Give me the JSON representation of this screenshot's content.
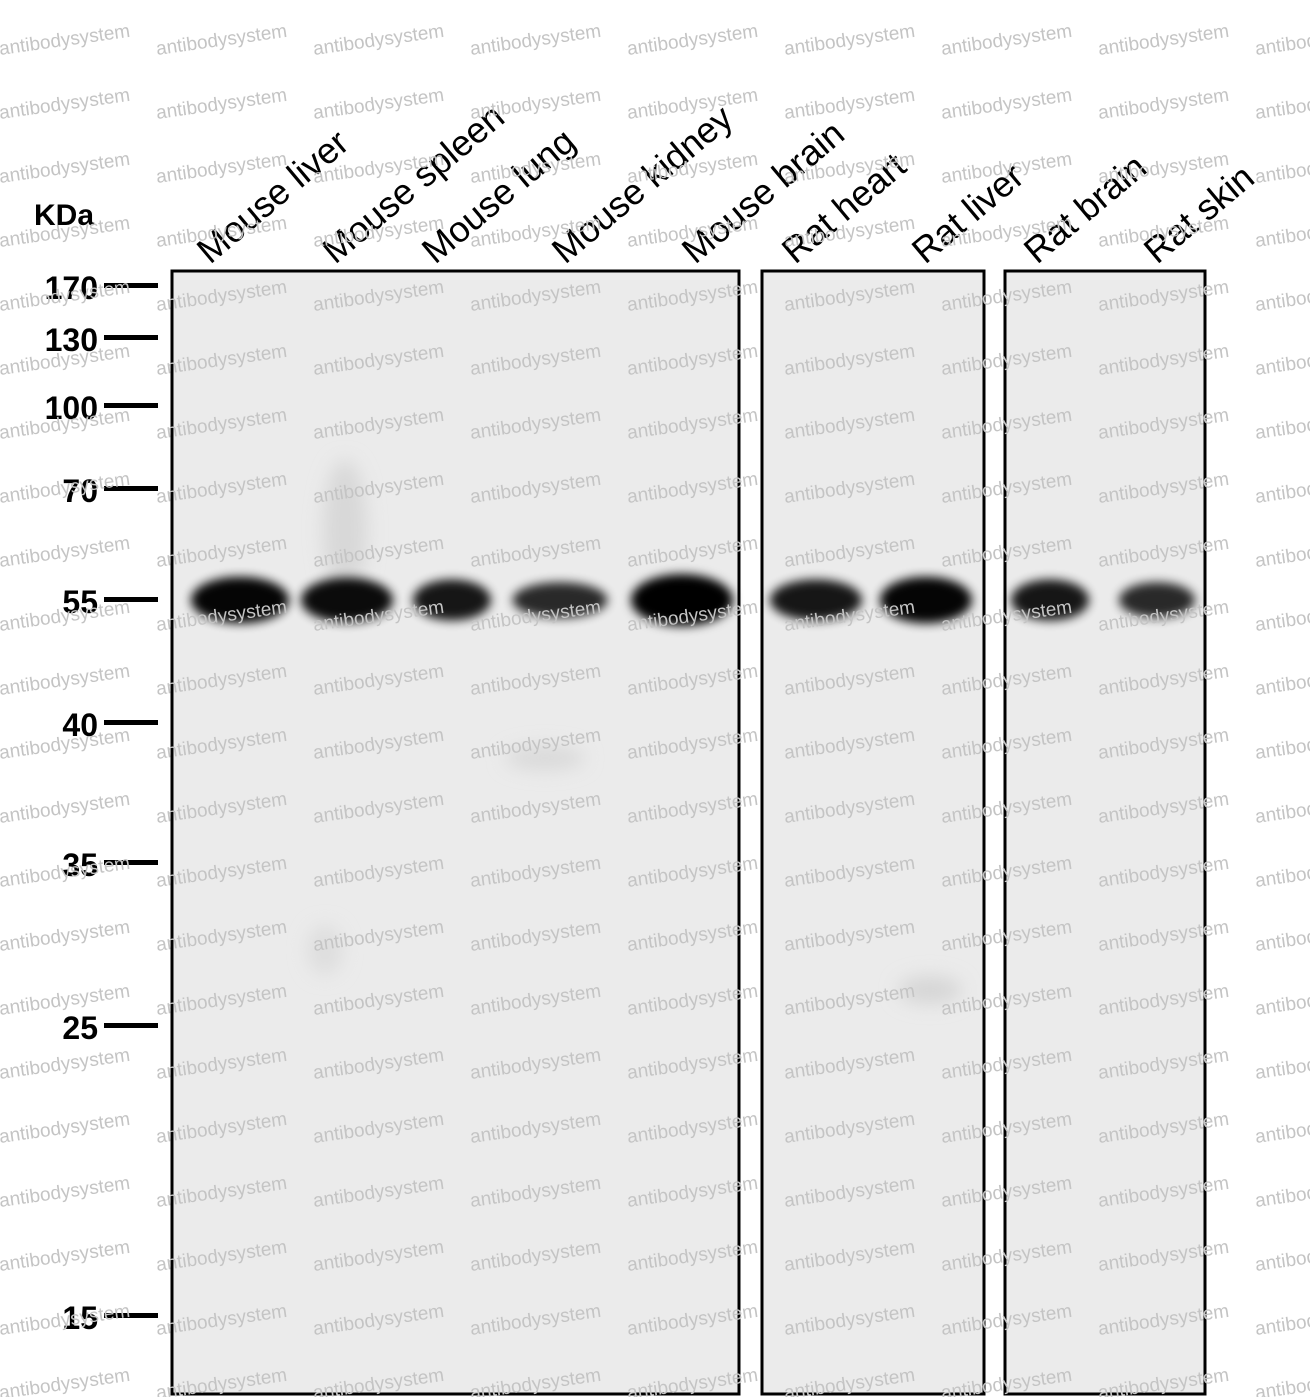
{
  "unit_label": "KDa",
  "markers": [
    "170",
    "130",
    "100",
    "70",
    "55",
    "40",
    "35",
    "25",
    "15"
  ],
  "lanes": [
    "Mouse liver",
    "Mouse spleen",
    "Mouse lung",
    "Mouse kidney",
    "Mouse brain",
    "Rat heart",
    "Rat liver",
    "Rat brain",
    "Rat skin"
  ],
  "watermark": "antibodysystem",
  "band_size_kda": "55",
  "band_intensity_relative": [
    0.85,
    0.8,
    0.7,
    0.55,
    1.0,
    0.7,
    0.85,
    0.7,
    0.55
  ],
  "colors": {
    "background": "#ffffff",
    "membrane": "#ebebeb",
    "band": "#000000",
    "watermark": "#c4c4c4"
  }
}
